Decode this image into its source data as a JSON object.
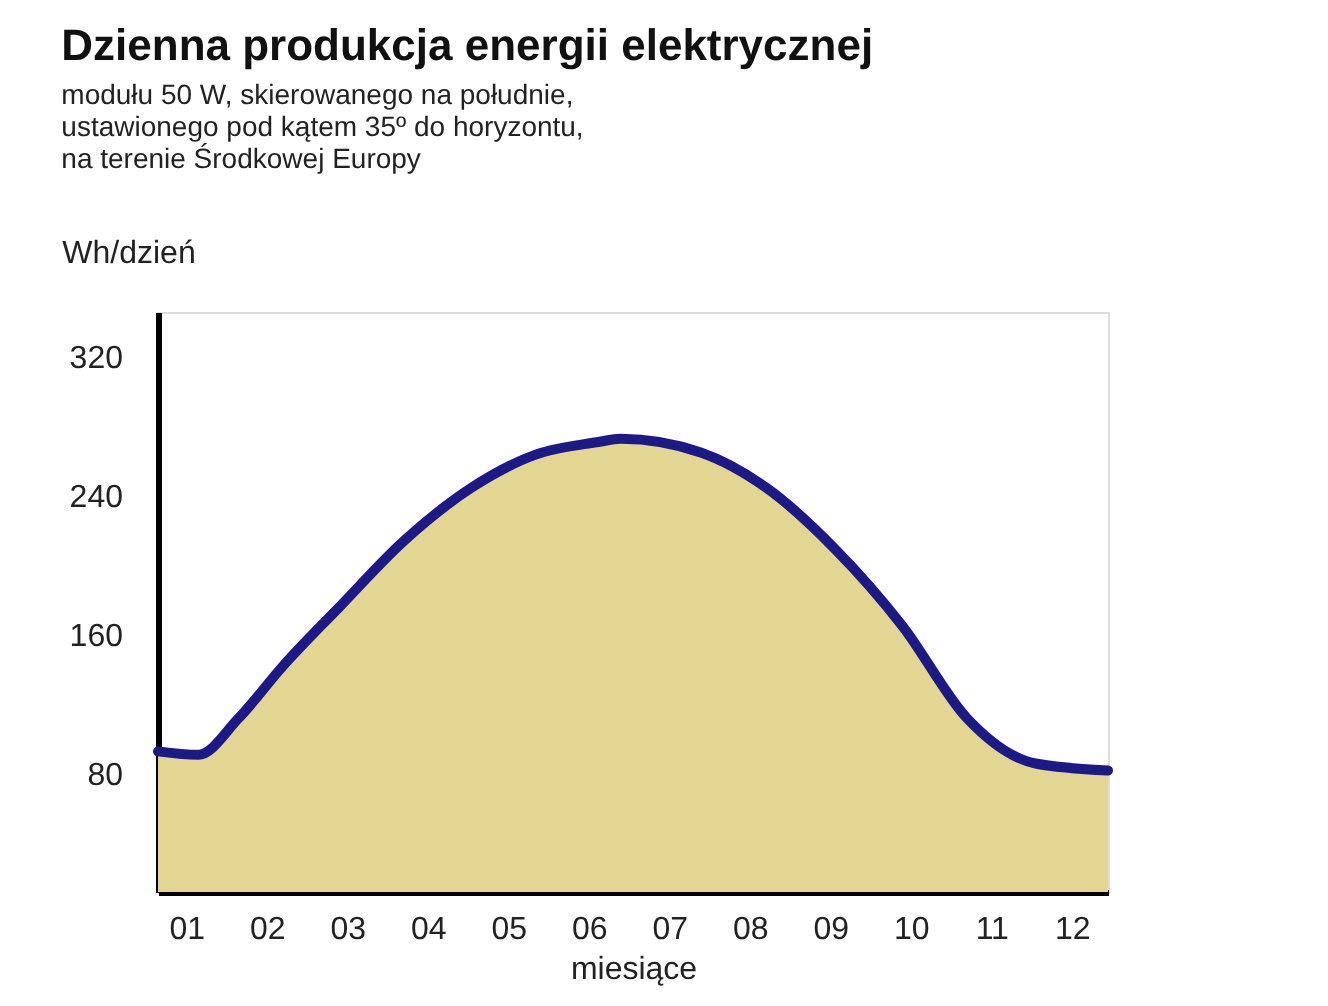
{
  "chart_data": {
    "type": "area",
    "title": "Dzienna produkcja energii elektrycznej",
    "subtitle": [
      "modułu 50 W, skierowanego na południe,",
      "ustawionego pod kątem 35º do horyzontu,",
      "na terenie Środkowej Europy"
    ],
    "xlabel": "miesiące",
    "ylabel": "Wh/dzień",
    "x": [
      0.65,
      1.15,
      1.65,
      2.2,
      2.9,
      3.7,
      4.55,
      5.35,
      6.1,
      6.4,
      7.4,
      8.2,
      9.05,
      9.9,
      10.7,
      11.55,
      12.45
    ],
    "series": [
      {
        "color": "#e3d592",
        "values": [
          93,
          91,
          112,
          142,
          176,
          214,
          245,
          264,
          271,
          273,
          265,
          245,
          210,
          165,
          112,
          86,
          82
        ]
      },
      {
        "type": "line",
        "color": "#1c1a86",
        "values": [
          93,
          91,
          112,
          142,
          176,
          214,
          245,
          264,
          271,
          273,
          265,
          245,
          210,
          165,
          112,
          86,
          82
        ]
      }
    ],
    "xlim": [
      0.65,
      12.45
    ],
    "xticks": [
      {
        "value": 1,
        "label": "01"
      },
      {
        "value": 2,
        "label": "02"
      },
      {
        "value": 3,
        "label": "03"
      },
      {
        "value": 4,
        "label": "04"
      },
      {
        "value": 5,
        "label": "05"
      },
      {
        "value": 6,
        "label": "06"
      },
      {
        "value": 7,
        "label": "07"
      },
      {
        "value": 8,
        "label": "08"
      },
      {
        "value": 9,
        "label": "09"
      },
      {
        "value": 10,
        "label": "10"
      },
      {
        "value": 11,
        "label": "11"
      },
      {
        "value": 12,
        "label": "12"
      }
    ],
    "ylim": [
      12,
      346
    ],
    "yticks": [
      80,
      160,
      240,
      320
    ],
    "grid": false,
    "marker": "none",
    "line_style": "solid"
  }
}
